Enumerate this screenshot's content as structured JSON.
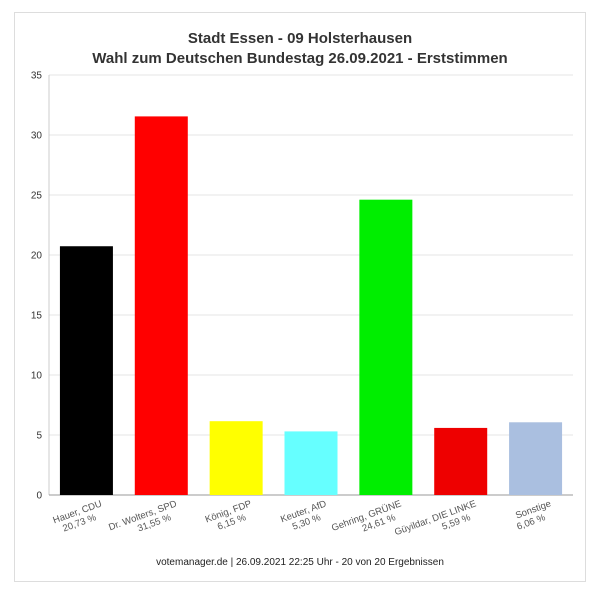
{
  "chart_data": {
    "type": "bar",
    "title": "Stadt Essen - 09 Holsterhausen",
    "subtitle": "Wahl zum Deutschen Bundestag 26.09.2021  - Erststimmen",
    "categories": [
      {
        "name": "Hauer, CDU",
        "pct": "20,73 %"
      },
      {
        "name": "Dr. Wolters, SPD",
        "pct": "31,55 %"
      },
      {
        "name": "König, FDP",
        "pct": "6,15 %"
      },
      {
        "name": "Keuter, AfD",
        "pct": "5,30 %"
      },
      {
        "name": "Gehring, GRÜNE",
        "pct": "24,61 %"
      },
      {
        "name": "Güyildar, DIE LINKE",
        "pct": "5,59 %"
      },
      {
        "name": "Sonstige",
        "pct": "6,06 %"
      }
    ],
    "values": [
      20.73,
      31.55,
      6.15,
      5.3,
      24.61,
      5.59,
      6.06
    ],
    "colors": [
      "#000000",
      "#ff0000",
      "#ffff00",
      "#66ffff",
      "#00ee00",
      "#ee0000",
      "#aabfe0"
    ],
    "ylim": [
      0,
      35
    ],
    "yticks": [
      0,
      5,
      10,
      15,
      20,
      25,
      30,
      35
    ],
    "grid": true,
    "xlabel": "",
    "ylabel": ""
  },
  "footer": "votemanager.de | 26.09.2021 22:25 Uhr - 20 von 20 Ergebnissen"
}
